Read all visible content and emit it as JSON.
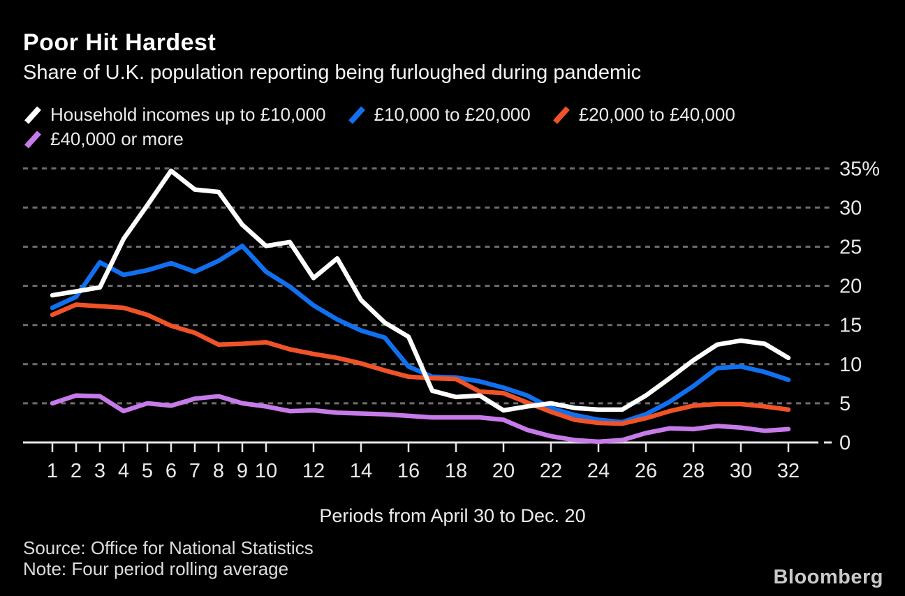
{
  "header": {
    "title": "Poor Hit Hardest",
    "subtitle": "Share of U.K. population reporting being furloughed during pandemic"
  },
  "chart_data": {
    "type": "line",
    "title": "Poor Hit Hardest",
    "subtitle": "Share of U.K. population reporting being furloughed during pandemic",
    "x_axis_label": "Periods from April 30 to Dec. 20",
    "x": [
      1,
      2,
      3,
      4,
      5,
      6,
      7,
      8,
      9,
      10,
      11,
      12,
      13,
      14,
      15,
      16,
      17,
      18,
      19,
      20,
      21,
      22,
      23,
      24,
      25,
      26,
      27,
      28,
      29,
      30,
      31,
      32
    ],
    "x_tick_labels": [
      "1",
      "2",
      "3",
      "4",
      "5",
      "6",
      "7",
      "8",
      "9",
      "10",
      "12",
      "14",
      "16",
      "18",
      "20",
      "22",
      "24",
      "26",
      "28",
      "30",
      "32"
    ],
    "y_ticks": [
      0,
      5,
      10,
      15,
      20,
      25,
      30,
      35
    ],
    "y_tick_labels": [
      "0",
      "5",
      "10",
      "15",
      "20",
      "25",
      "30",
      "35%"
    ],
    "ylim": [
      0,
      35
    ],
    "grid": "dotted-horizontal",
    "legend_position": "top",
    "series": [
      {
        "name": "Household incomes up to £10,000",
        "color": "#ffffff",
        "values": [
          18.8,
          19.3,
          19.8,
          26.0,
          30.3,
          34.7,
          32.3,
          32.0,
          27.8,
          25.1,
          25.6,
          21.0,
          23.5,
          18.2,
          15.3,
          13.5,
          6.6,
          5.8,
          6.0,
          4.1,
          4.6,
          5.0,
          4.4,
          4.2,
          4.2,
          6.0,
          8.2,
          10.5,
          12.5,
          13.0,
          12.6,
          10.8
        ]
      },
      {
        "name": "£10,000 to £20,000",
        "color": "#1170f0",
        "values": [
          17.2,
          18.6,
          23.0,
          21.4,
          22.0,
          22.9,
          21.8,
          23.2,
          25.1,
          21.8,
          19.9,
          17.5,
          15.7,
          14.3,
          13.4,
          9.7,
          8.4,
          8.3,
          7.8,
          7.0,
          6.0,
          4.4,
          3.5,
          2.9,
          2.6,
          3.6,
          5.2,
          7.2,
          9.5,
          9.7,
          9.0,
          8.0
        ]
      },
      {
        "name": "£20,000 to £40,000",
        "color": "#ef5327",
        "values": [
          16.3,
          17.6,
          17.4,
          17.2,
          16.3,
          14.9,
          14.0,
          12.5,
          12.6,
          12.8,
          11.9,
          11.3,
          10.8,
          10.1,
          9.2,
          8.4,
          8.2,
          8.1,
          6.5,
          6.3,
          5.1,
          3.9,
          2.9,
          2.5,
          2.4,
          3.1,
          4.0,
          4.7,
          4.9,
          4.9,
          4.6,
          4.2
        ]
      },
      {
        "name": "£40,000 or more",
        "color": "#c77ae9",
        "values": [
          5.0,
          6.0,
          5.9,
          4.0,
          5.0,
          4.7,
          5.6,
          5.9,
          5.0,
          4.6,
          4.0,
          4.1,
          3.8,
          3.7,
          3.6,
          3.4,
          3.2,
          3.2,
          3.2,
          2.9,
          1.6,
          0.8,
          0.3,
          0.1,
          0.3,
          1.2,
          1.8,
          1.7,
          2.1,
          1.9,
          1.5,
          1.7
        ]
      }
    ]
  },
  "footer": {
    "source": "Source: Office for National Statistics",
    "note": "Note: Four period rolling average",
    "brand": "Bloomberg"
  }
}
